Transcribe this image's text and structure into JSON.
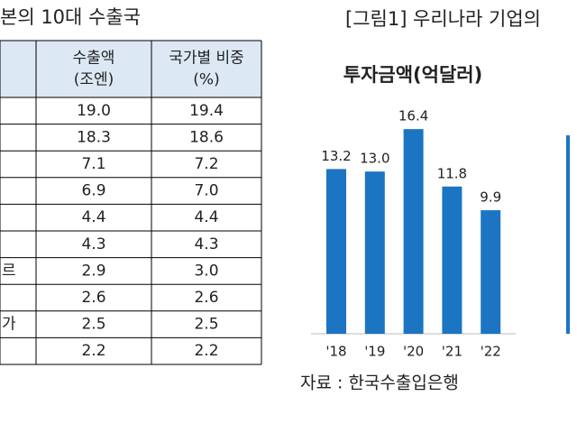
{
  "left_title": "본의 10대 수출국",
  "table": {
    "header": [
      null,
      "수출액\n(조엔)",
      "국가별 비중\n(%)"
    ],
    "rows": [
      [
        null,
        "19.0",
        "19.4"
      ],
      [
        null,
        "18.3",
        "18.6"
      ],
      [
        null,
        "7.1",
        "7.2"
      ],
      [
        null,
        "6.9",
        "7.0"
      ],
      [
        null,
        "4.4",
        "4.4"
      ],
      [
        null,
        "4.3",
        "4.3"
      ],
      [
        "르",
        "2.9",
        "3.0"
      ],
      [
        null,
        "2.6",
        "2.6"
      ],
      [
        "가",
        "2.5",
        "2.5"
      ],
      [
        null,
        "2.2",
        "2.2"
      ]
    ]
  },
  "figure_title": "[그림1] 우리나라 기업의",
  "chart_data": {
    "type": "bar",
    "title": "투자금액(억달러)",
    "categories": [
      "'18",
      "'19",
      "'20",
      "'21",
      "'22"
    ],
    "values": [
      13.2,
      13.0,
      16.4,
      11.8,
      9.9
    ],
    "value_labels": [
      "13.2",
      "13.0",
      "16.4",
      "11.8",
      "9.9"
    ],
    "color": "#1b75c2",
    "ylim": [
      0,
      18
    ]
  },
  "source": "자료 : 한국수출입은행"
}
